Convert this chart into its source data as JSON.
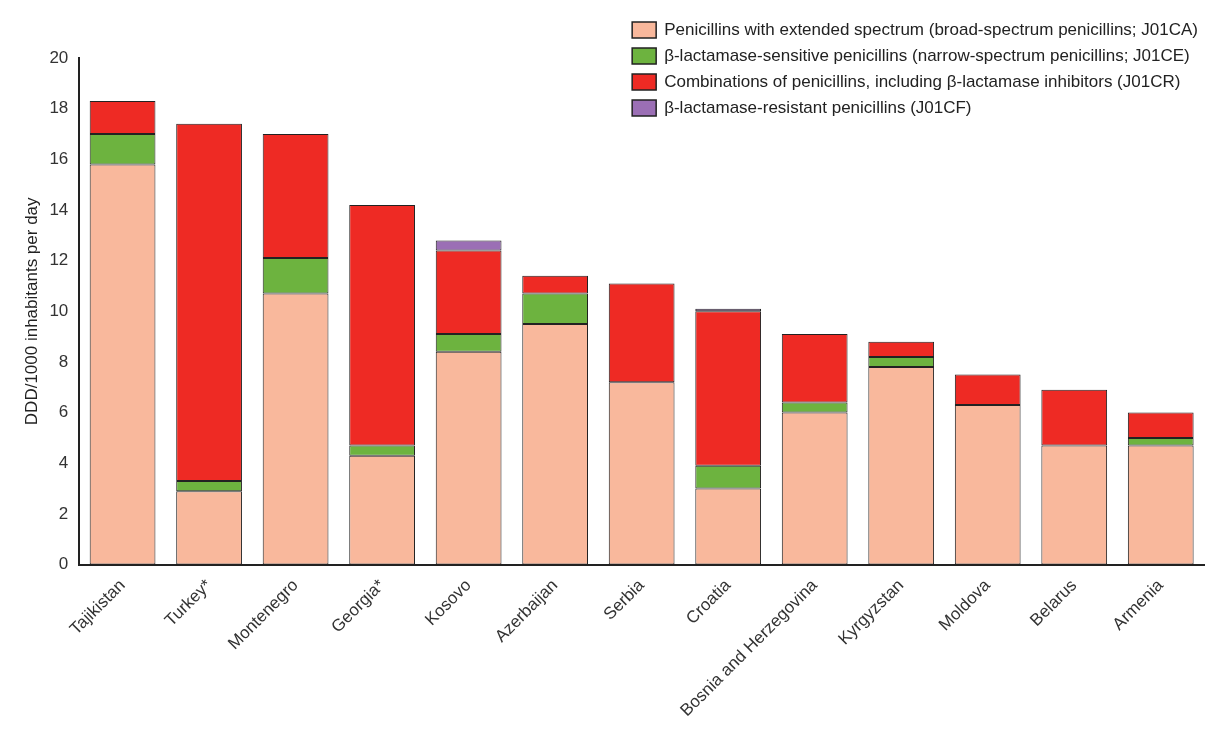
{
  "chart_data": {
    "type": "bar",
    "stacked": true,
    "ylabel": "DDD/1000 inhabitants per day",
    "categories": [
      "Tajikistan",
      "Turkey*",
      "Montenegro",
      "Georgia*",
      "Kosovo",
      "Azerbaijan",
      "Serbia",
      "Croatia",
      "Bosnia and Herzegovina",
      "Kyrgyzstan",
      "Moldova",
      "Belarus",
      "Armenia"
    ],
    "series": [
      {
        "name": "Penicillins with extended spectrum (broad-spectrum penicillins; J01CA)",
        "color": "#f9b89c",
        "values": [
          15.8,
          2.9,
          10.7,
          4.3,
          8.4,
          9.5,
          7.2,
          3.0,
          6.0,
          7.8,
          6.3,
          4.7,
          4.7
        ]
      },
      {
        "name": "β-lactamase-sensitive penicillins (narrow-spectrum penicillins; J01CE)",
        "color": "#6db33f",
        "values": [
          1.2,
          0.4,
          1.4,
          0.4,
          0.7,
          1.2,
          0,
          0.9,
          0.4,
          0.4,
          0,
          0,
          0.3
        ]
      },
      {
        "name": "Combinations of penicillins, including β-lactamase inhibitors (J01CR)",
        "color": "#ee2a24",
        "values": [
          1.3,
          14.1,
          4.9,
          9.5,
          3.3,
          0.7,
          3.9,
          6.1,
          2.7,
          0.6,
          1.2,
          2.2,
          1.0
        ]
      },
      {
        "name": "β-lactamase-resistant penicillins (J01CF)",
        "color": "#9b6fb5",
        "values": [
          0,
          0,
          0,
          0,
          0.4,
          0,
          0,
          0.1,
          0,
          0,
          0,
          0,
          0
        ]
      }
    ],
    "ylim": [
      0,
      20
    ],
    "yticks": [
      0,
      2,
      4,
      6,
      8,
      10,
      12,
      14,
      16,
      18,
      20
    ],
    "grid": false,
    "legend": "top right"
  }
}
